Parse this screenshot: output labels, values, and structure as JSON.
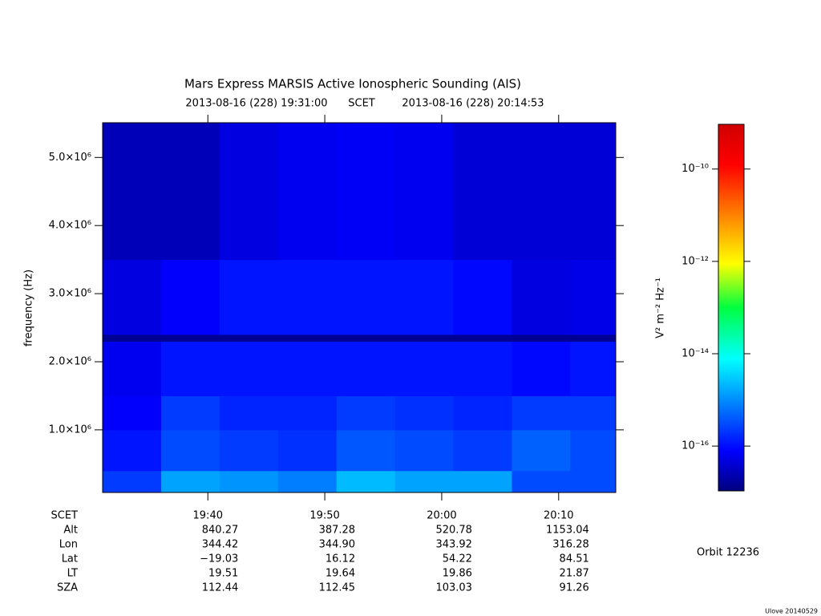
{
  "chart_data": {
    "type": "heatmap",
    "title": "Mars Express MARSIS Active Ionospheric Sounding (AIS)",
    "start_label": "2013-08-16 (228) 19:31:00",
    "time_system": "SCET",
    "end_label": "2013-08-16 (228) 20:14:53",
    "y_label": "frequency (Hz)",
    "colorbar_label": "V² m⁻² Hz⁻¹",
    "xlim": [
      "19:31:00",
      "20:14:53"
    ],
    "xticks": [
      "19:40",
      "19:50",
      "20:00",
      "20:10"
    ],
    "ylim": [
      80000,
      5510000
    ],
    "yticks": [
      {
        "value": 1000000,
        "label": "1.0×10⁶"
      },
      {
        "value": 2000000,
        "label": "2.0×10⁶"
      },
      {
        "value": 3000000,
        "label": "3.0×10⁶"
      },
      {
        "value": 4000000,
        "label": "4.0×10⁶"
      },
      {
        "value": 5000000,
        "label": "5.0×10⁶"
      }
    ],
    "clim": [
      1.07e-17,
      9.3e-10
    ],
    "color_log_scale": true,
    "colormap": "jet",
    "cticks": [
      {
        "value": 1e-10,
        "label": "10⁻¹⁰"
      },
      {
        "value": 1e-12,
        "label": "10⁻¹²"
      },
      {
        "value": 1e-14,
        "label": "10⁻¹⁴"
      },
      {
        "value": 1e-16,
        "label": "10⁻¹⁶"
      }
    ],
    "x_edges": [
      "19:31:00",
      "19:36:00",
      "19:41:00",
      "19:46:00",
      "19:51:00",
      "19:56:00",
      "20:01:00",
      "20:06:00",
      "20:11:00",
      "20:14:53"
    ],
    "y_edges": [
      80000,
      400000,
      1000000,
      1500000,
      2300000,
      2400000,
      3500000,
      5510000
    ],
    "z": [
      [
        3e-16,
        2e-15,
        1.5e-15,
        1e-15,
        3e-15,
        2e-15,
        2e-15,
        4e-16,
        4e-16
      ],
      [
        1.5e-16,
        4e-16,
        3e-16,
        2.5e-16,
        5e-16,
        4e-16,
        3e-16,
        6e-16,
        4e-16
      ],
      [
        1e-16,
        3e-16,
        2e-16,
        2e-16,
        3e-16,
        2.5e-16,
        2e-16,
        3e-16,
        3e-16
      ],
      [
        8e-17,
        1.5e-16,
        1.5e-16,
        1.5e-16,
        1.5e-16,
        1.5e-16,
        1.5e-16,
        1.2e-16,
        1.5e-16
      ],
      [
        1.5e-17,
        1.5e-17,
        1.5e-17,
        1.5e-17,
        1.5e-17,
        1.5e-17,
        1.5e-17,
        1.5e-17,
        1.5e-17
      ],
      [
        6e-17,
        1e-16,
        1.5e-16,
        1.5e-16,
        1.5e-16,
        1.5e-16,
        1.2e-16,
        6e-17,
        7e-17
      ],
      [
        3e-17,
        3e-17,
        6e-17,
        8e-17,
        9e-17,
        8e-17,
        5e-17,
        5e-17,
        5e-17
      ]
    ]
  },
  "ephemeris": {
    "time_label": "SCET",
    "rows": [
      {
        "label": "Alt",
        "values": [
          "840.27",
          "387.28",
          "520.78",
          "1153.04"
        ]
      },
      {
        "label": "Lon",
        "values": [
          "344.42",
          "344.90",
          "343.92",
          "316.28"
        ]
      },
      {
        "label": "Lat",
        "values": [
          "−19.03",
          "16.12",
          "54.22",
          "84.51"
        ]
      },
      {
        "label": "LT",
        "values": [
          "19.51",
          "19.64",
          "19.86",
          "21.87"
        ]
      },
      {
        "label": "SZA",
        "values": [
          "112.44",
          "112.45",
          "103.03",
          "91.26"
        ]
      }
    ]
  },
  "orbit": "Orbit 12236",
  "credit": "Ulove 20140529"
}
